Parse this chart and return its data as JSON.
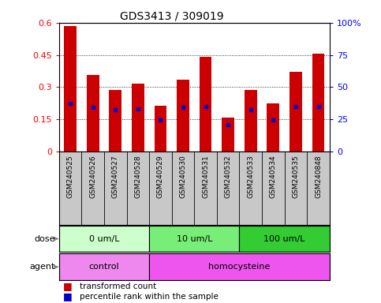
{
  "title": "GDS3413 / 309019",
  "samples": [
    "GSM240525",
    "GSM240526",
    "GSM240527",
    "GSM240528",
    "GSM240529",
    "GSM240530",
    "GSM240531",
    "GSM240532",
    "GSM240533",
    "GSM240534",
    "GSM240535",
    "GSM240848"
  ],
  "red_values": [
    0.585,
    0.355,
    0.285,
    0.315,
    0.215,
    0.335,
    0.44,
    0.158,
    0.285,
    0.225,
    0.37,
    0.455
  ],
  "blue_values": [
    0.225,
    0.205,
    0.195,
    0.2,
    0.148,
    0.205,
    0.21,
    0.125,
    0.195,
    0.148,
    0.21,
    0.21
  ],
  "ylim": [
    0,
    0.6
  ],
  "yticks": [
    0,
    0.15,
    0.3,
    0.45,
    0.6
  ],
  "ytick_labels": [
    "0",
    "0.15",
    "0.3",
    "0.45",
    "0.6"
  ],
  "right_yticks": [
    0,
    25,
    50,
    75,
    100
  ],
  "right_ytick_labels": [
    "0",
    "25",
    "50",
    "75",
    "100%"
  ],
  "dose_groups": [
    {
      "label": "0 um/L",
      "start": 0,
      "end": 4,
      "color": "#ccffcc"
    },
    {
      "label": "10 um/L",
      "start": 4,
      "end": 8,
      "color": "#77ee77"
    },
    {
      "label": "100 um/L",
      "start": 8,
      "end": 12,
      "color": "#33cc33"
    }
  ],
  "agent_groups": [
    {
      "label": "control",
      "start": 0,
      "end": 4,
      "color": "#ee88ee"
    },
    {
      "label": "homocysteine",
      "start": 4,
      "end": 12,
      "color": "#ee55ee"
    }
  ],
  "bar_color": "#cc0000",
  "blue_color": "#0000cc",
  "dose_label": "dose",
  "agent_label": "agent",
  "legend_red": "transformed count",
  "legend_blue": "percentile rank within the sample",
  "tick_bg_color": "#c8c8c8",
  "bar_width": 0.55,
  "title_fontsize": 10
}
